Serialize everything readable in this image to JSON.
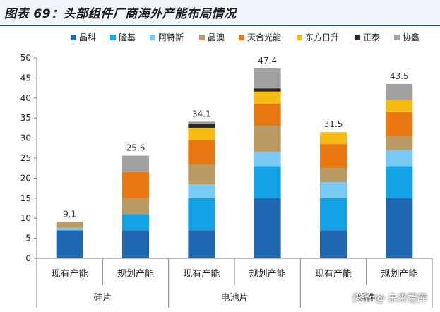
{
  "title": "图表 69：头部组件厂商海外产能布局情况",
  "watermark": "头条 @ 未来智库",
  "colors": {
    "晶科": "#1f67b1",
    "隆基": "#12a3e6",
    "阿特斯": "#78c9f3",
    "晶澳": "#b89a62",
    "天合光能": "#e8780f",
    "东方日升": "#f7bc14",
    "正泰": "#2b2b2b",
    "协鑫": "#a1a1a1"
  },
  "chart_data": {
    "type": "bar",
    "stacked": true,
    "title": "",
    "xlabel": "",
    "ylabel": "",
    "ylim": [
      0,
      50
    ],
    "yticks": [
      0,
      5,
      10,
      15,
      20,
      25,
      30,
      35,
      40,
      45,
      50
    ],
    "grid": false,
    "legend_position": "top",
    "categories": [
      "现有产能",
      "规划产能",
      "现有产能",
      "规划产能",
      "现有产能",
      "规划产能"
    ],
    "groups": [
      {
        "label": "硅片",
        "span": [
          0,
          1
        ]
      },
      {
        "label": "电池片",
        "span": [
          2,
          3
        ]
      },
      {
        "label": "组件",
        "span": [
          4,
          5
        ]
      }
    ],
    "totals": [
      9.1,
      25.6,
      34.1,
      47.4,
      31.5,
      43.5
    ],
    "series": [
      {
        "name": "晶科",
        "values": [
          7.0,
          7.0,
          7.0,
          15.0,
          7.0,
          15.0
        ]
      },
      {
        "name": "隆基",
        "values": [
          0.0,
          4.0,
          8.0,
          8.0,
          8.0,
          8.0
        ]
      },
      {
        "name": "阿特斯",
        "values": [
          0.6,
          0.0,
          3.5,
          3.6,
          4.0,
          4.0
        ]
      },
      {
        "name": "晶澳",
        "values": [
          1.5,
          4.0,
          5.0,
          6.5,
          3.5,
          3.5
        ]
      },
      {
        "name": "天合光能",
        "values": [
          0.0,
          6.5,
          6.0,
          5.5,
          6.0,
          6.0
        ]
      },
      {
        "name": "东方日升",
        "values": [
          0.0,
          0.0,
          3.0,
          3.0,
          3.0,
          3.0
        ]
      },
      {
        "name": "正泰",
        "values": [
          0.0,
          0.0,
          1.0,
          0.8,
          0.0,
          0.0
        ]
      },
      {
        "name": "协鑫",
        "values": [
          0.0,
          4.1,
          0.6,
          5.0,
          0.0,
          4.0
        ]
      }
    ]
  }
}
